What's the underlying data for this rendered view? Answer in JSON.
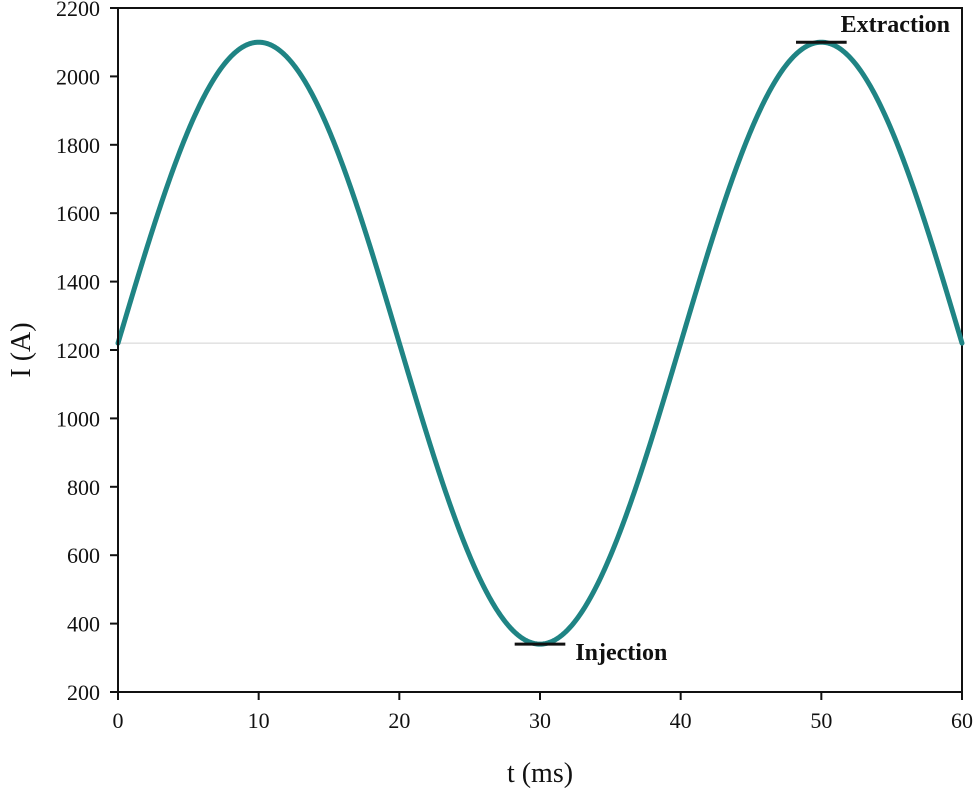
{
  "chart_data": {
    "type": "line",
    "title": "",
    "xlabel": "t (ms)",
    "ylabel": "I (A)",
    "xlim": [
      0,
      60
    ],
    "ylim": [
      200,
      2200
    ],
    "x_ticks": [
      0,
      10,
      20,
      30,
      40,
      50,
      60
    ],
    "y_ticks": [
      200,
      400,
      600,
      800,
      1000,
      1200,
      1400,
      1600,
      1800,
      2000,
      2200
    ],
    "x_tick_labels": [
      "0",
      "10",
      "20",
      "30",
      "40",
      "50",
      "60"
    ],
    "y_tick_labels": [
      "200",
      "400",
      "600",
      "800",
      "1000",
      "1200",
      "1400",
      "1600",
      "1800",
      "2000",
      "2200"
    ],
    "grid": false,
    "reference_line": {
      "y": 1220
    },
    "series": [
      {
        "name": "I(t)",
        "color": "#1f8484",
        "x": [
          0,
          2,
          4,
          6,
          8,
          10,
          12,
          14,
          16,
          18,
          20,
          22,
          24,
          26,
          28,
          30,
          32,
          34,
          36,
          38,
          40,
          42,
          44,
          46,
          48,
          50,
          52,
          54,
          56,
          58,
          60
        ],
        "y": [
          1220,
          1492,
          1737,
          1932,
          2057,
          2100,
          2057,
          1932,
          1737,
          1492,
          1220,
          948,
          703,
          508,
          383,
          340,
          383,
          508,
          703,
          948,
          1220,
          1492,
          1737,
          1932,
          2057,
          2100,
          2057,
          1932,
          1737,
          1492,
          1220
        ]
      }
    ],
    "annotations": [
      {
        "text": "Extraction",
        "x": 50,
        "y": 2100,
        "marker_x_range": [
          48.2,
          51.8
        ]
      },
      {
        "text": "Injection",
        "x": 30,
        "y": 340,
        "marker_x_range": [
          28.2,
          31.8
        ]
      }
    ]
  }
}
